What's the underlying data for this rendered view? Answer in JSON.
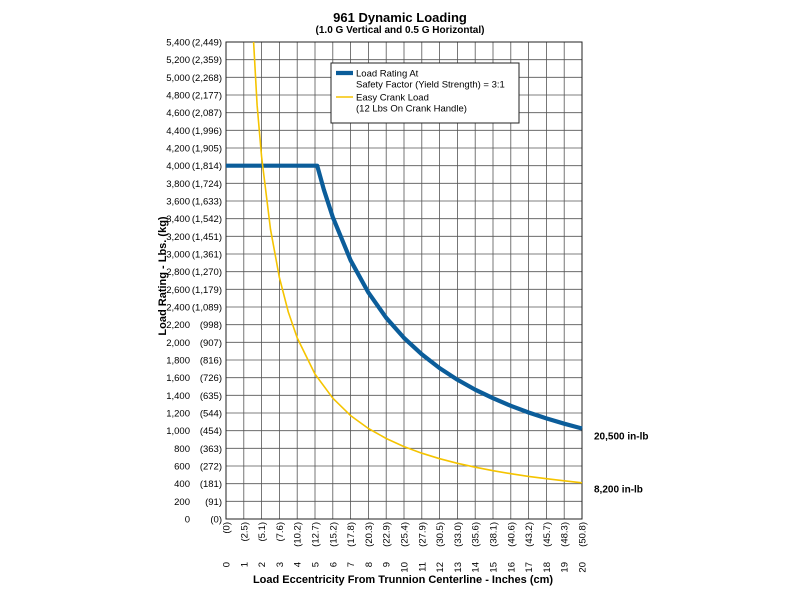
{
  "chart_data": {
    "type": "line",
    "title": "961 Dynamic Loading",
    "subtitle": "(1.0 G Vertical and 0.5 G Horizontal)",
    "xlabel": "Load Eccentricity From Trunnion Centerline - Inches (cm)",
    "ylabel": "Load Rating - Lbs. (kg)",
    "xlim": [
      0,
      20
    ],
    "ylim": [
      0,
      5400
    ],
    "grid": true,
    "legend_position": "top-right",
    "x_ticks": [
      {
        "in": "0",
        "cm": "(0)"
      },
      {
        "in": "1",
        "cm": "(2.5)"
      },
      {
        "in": "2",
        "cm": "(5.1)"
      },
      {
        "in": "3",
        "cm": "(7.6)"
      },
      {
        "in": "4",
        "cm": "(10.2)"
      },
      {
        "in": "5",
        "cm": "(12.7)"
      },
      {
        "in": "6",
        "cm": "(15.2)"
      },
      {
        "in": "7",
        "cm": "(17.8)"
      },
      {
        "in": "8",
        "cm": "(20.3)"
      },
      {
        "in": "9",
        "cm": "(22.9)"
      },
      {
        "in": "10",
        "cm": "(25.4)"
      },
      {
        "in": "11",
        "cm": "(27.9)"
      },
      {
        "in": "12",
        "cm": "(30.5)"
      },
      {
        "in": "13",
        "cm": "(33.0)"
      },
      {
        "in": "14",
        "cm": "(35.6)"
      },
      {
        "in": "15",
        "cm": "(38.1)"
      },
      {
        "in": "16",
        "cm": "(40.6)"
      },
      {
        "in": "17",
        "cm": "(43.2)"
      },
      {
        "in": "18",
        "cm": "(45.7)"
      },
      {
        "in": "19",
        "cm": "(48.3)"
      },
      {
        "in": "20",
        "cm": "(50.8)"
      }
    ],
    "y_ticks": [
      "0",
      "200 (91)",
      "400 (181)",
      "600 (272)",
      "800 (363)",
      "1,000 (454)",
      "1,200 (544)",
      "1,400 (635)",
      "1,600 (726)",
      "1,800 (816)",
      "2,000 (907)",
      "2,200 (998)",
      "2,400 (1,089)",
      "2,600 (1,179)",
      "2,800 (1,270)",
      "3,000 (1,361)",
      "3,200 (1,451)",
      "3,400 (1,542)",
      "3,600 (1,633)",
      "3,800 (1,724)",
      "4,000 (1,814)",
      "4,200 (1,905)",
      "4,400 (1,996)",
      "4,600 (2,087)",
      "4,800 (2,177)",
      "5,000 (2,268)",
      "5,200 (2,359)",
      "5,400 (2,449)"
    ],
    "y_zero_kg": "(0)",
    "series": [
      {
        "name": "Load Rating At Safety Factor (Yield Strength) = 3:1",
        "legend_lines": [
          "Load Rating At",
          "Safety Factor (Yield Strength) = 3:1"
        ],
        "color": "#0b5d9a",
        "end_label": "20,500 in-lb",
        "x": [
          0,
          5.125,
          5.5,
          6,
          7,
          8,
          9,
          10,
          11,
          12,
          13,
          14,
          15,
          16,
          17,
          18,
          19,
          20
        ],
        "y": [
          4000,
          4000,
          3727,
          3417,
          2929,
          2563,
          2278,
          2050,
          1864,
          1708,
          1577,
          1464,
          1367,
          1281,
          1206,
          1139,
          1079,
          1025
        ]
      },
      {
        "name": "Easy Crank Load (12 Lbs On Crank Handle)",
        "legend_lines": [
          "Easy Crank Load",
          "(12 Lbs On Crank Handle)"
        ],
        "color": "#f5c400",
        "end_label": "8,200 in-lb",
        "x": [
          1.55,
          1.75,
          2,
          2.5,
          3,
          3.5,
          4,
          5,
          6,
          7,
          8,
          9,
          10,
          11,
          12,
          13,
          14,
          15,
          16,
          17,
          18,
          19,
          20
        ],
        "y": [
          5400,
          4686,
          4100,
          3280,
          2733,
          2343,
          2050,
          1640,
          1367,
          1171,
          1025,
          911,
          820,
          745,
          683,
          631,
          586,
          547,
          513,
          482,
          456,
          432,
          410
        ]
      }
    ]
  }
}
